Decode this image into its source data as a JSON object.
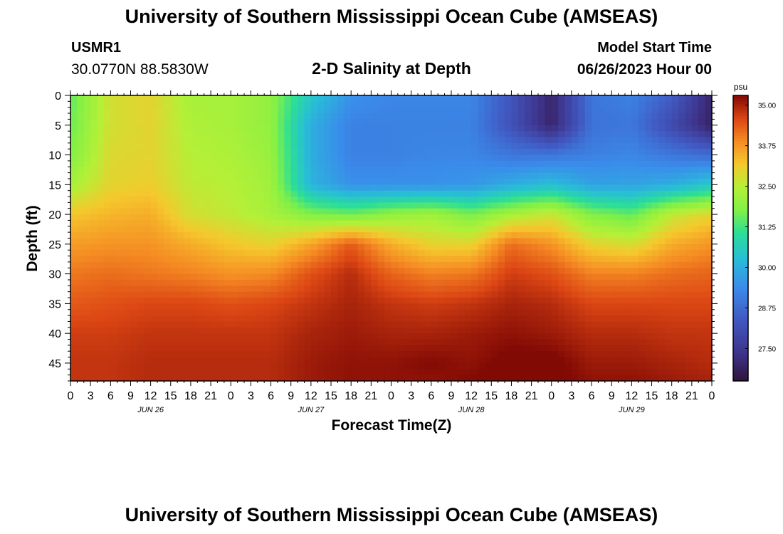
{
  "header": {
    "title": "University of Southern Mississippi Ocean Cube (AMSEAS)",
    "station_id": "USMR1",
    "coords": "30.0770N  88.5830W",
    "subtitle": "2-D Salinity at Depth",
    "start_label": "Model Start Time",
    "start_value": "06/26/2023 Hour 00"
  },
  "footer": {
    "title": "University of Southern Mississippi Ocean Cube (AMSEAS)"
  },
  "chart_data": {
    "type": "heatmap",
    "title": "2-D Salinity at Depth",
    "xlabel": "Forecast Time(Z)",
    "ylabel": "Depth (ft)",
    "x_tick_labels": [
      "0",
      "3",
      "6",
      "9",
      "12",
      "15",
      "18",
      "21",
      "0",
      "3",
      "6",
      "9",
      "12",
      "15",
      "18",
      "21",
      "0",
      "3",
      "6",
      "9",
      "12",
      "15",
      "18",
      "21",
      "0",
      "3",
      "6",
      "9",
      "12",
      "15",
      "18",
      "21",
      "0"
    ],
    "x_range_hours": [
      0,
      96
    ],
    "day_labels": [
      {
        "label": "JUN 26",
        "hour": 12
      },
      {
        "label": "JUN 27",
        "hour": 36
      },
      {
        "label": "JUN 28",
        "hour": 60
      },
      {
        "label": "JUN 29",
        "hour": 84
      }
    ],
    "y_ticks": [
      0,
      5,
      10,
      15,
      20,
      25,
      30,
      35,
      40,
      45
    ],
    "y_range_ft": [
      0,
      48
    ],
    "colorbar": {
      "unit": "psu",
      "min": 26.5,
      "max": 35.3,
      "tick_values": [
        35.0,
        33.75,
        32.5,
        31.25,
        30.0,
        28.75,
        27.5
      ],
      "tick_labels": [
        "35.00",
        "33.75",
        "32.50",
        "31.25",
        "30.00",
        "28.75",
        "27.50"
      ]
    },
    "depth_levels_ft": [
      0,
      5,
      10,
      15,
      20,
      25,
      30,
      35,
      40,
      45,
      48
    ],
    "time_hours": [
      0,
      6,
      12,
      18,
      24,
      30,
      36,
      42,
      48,
      54,
      60,
      66,
      72,
      78,
      84,
      90,
      96
    ],
    "salinity": [
      [
        31.5,
        32.8,
        33.0,
        32.3,
        32.3,
        32.0,
        30.5,
        29.5,
        29.3,
        29.3,
        29.3,
        28.3,
        27.0,
        29.0,
        29.2,
        28.5,
        27.0
      ],
      [
        31.6,
        32.8,
        33.0,
        32.4,
        32.3,
        32.0,
        30.0,
        29.2,
        29.2,
        29.2,
        29.2,
        28.2,
        27.0,
        28.9,
        29.0,
        28.0,
        26.9
      ],
      [
        31.8,
        32.9,
        33.0,
        32.5,
        32.4,
        32.1,
        30.0,
        29.2,
        29.2,
        29.3,
        29.3,
        29.0,
        29.0,
        29.2,
        29.3,
        29.0,
        28.8
      ],
      [
        32.3,
        33.0,
        33.1,
        32.6,
        32.5,
        32.2,
        30.1,
        29.5,
        29.5,
        29.5,
        29.6,
        30.0,
        30.3,
        29.8,
        29.8,
        30.0,
        30.5
      ],
      [
        33.2,
        33.4,
        33.5,
        32.8,
        32.6,
        32.3,
        31.8,
        31.6,
        32.0,
        32.2,
        31.7,
        32.3,
        32.7,
        31.8,
        31.5,
        32.6,
        33.0
      ],
      [
        33.7,
        33.8,
        33.8,
        33.5,
        33.2,
        33.0,
        33.6,
        34.4,
        33.5,
        33.0,
        33.0,
        34.2,
        33.8,
        33.0,
        32.8,
        33.5,
        33.8
      ],
      [
        34.1,
        34.2,
        34.1,
        34.0,
        33.8,
        33.9,
        34.5,
        34.9,
        34.3,
        34.0,
        34.1,
        34.7,
        34.5,
        34.0,
        34.0,
        34.2,
        34.3
      ],
      [
        34.4,
        34.5,
        34.6,
        34.6,
        34.5,
        34.6,
        34.8,
        35.0,
        34.8,
        34.7,
        34.8,
        35.0,
        34.9,
        34.6,
        34.6,
        34.6,
        34.6
      ],
      [
        34.7,
        34.7,
        34.8,
        34.8,
        34.8,
        34.8,
        35.0,
        35.1,
        35.0,
        35.0,
        35.1,
        35.2,
        35.1,
        34.9,
        34.9,
        34.8,
        34.8
      ],
      [
        34.8,
        34.8,
        34.9,
        34.9,
        34.9,
        34.9,
        35.1,
        35.2,
        35.2,
        35.3,
        35.2,
        35.4,
        35.4,
        35.1,
        35.1,
        35.0,
        34.9
      ],
      [
        34.8,
        34.8,
        34.9,
        34.9,
        34.9,
        34.9,
        35.1,
        35.2,
        35.2,
        35.2,
        35.3,
        35.5,
        35.4,
        35.2,
        35.2,
        35.1,
        35.0
      ]
    ]
  }
}
